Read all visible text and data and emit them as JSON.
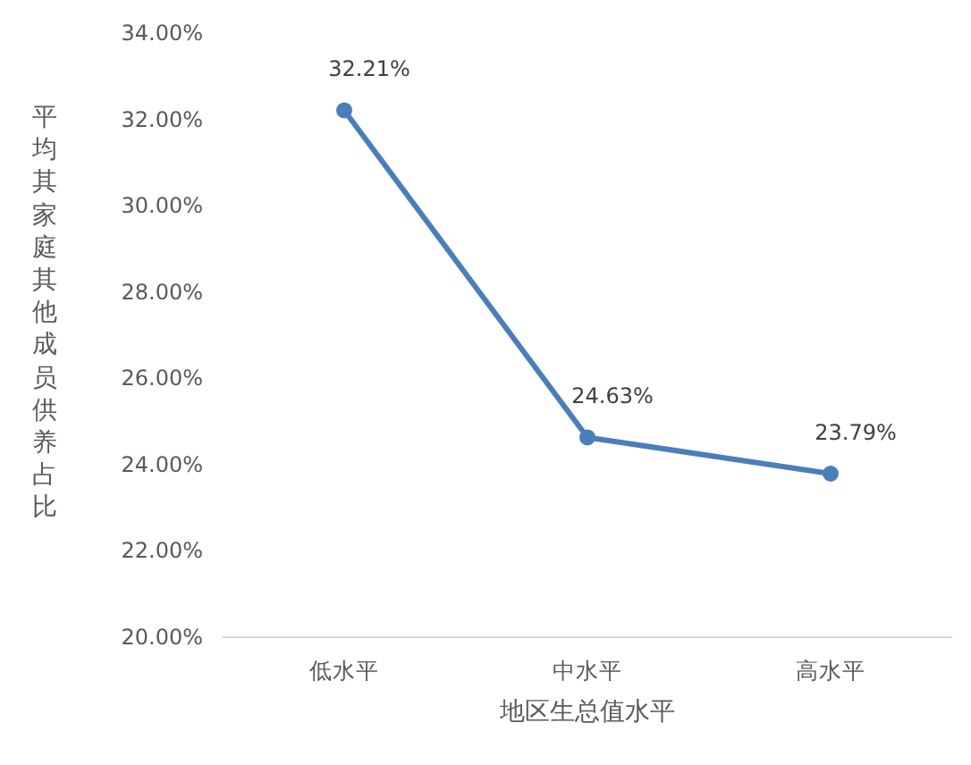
{
  "chart_data": {
    "type": "line",
    "xlabel": "地区生总值水平",
    "ylabel": "平均其家庭其他成员供养占比",
    "categories": [
      "低水平",
      "中水平",
      "高水平"
    ],
    "series": [
      {
        "color": "#4a7ebb",
        "values": [
          32.21,
          24.63,
          23.79
        ],
        "value_labels": [
          "32.21%",
          "24.63%",
          "23.79%"
        ]
      }
    ],
    "ylim": [
      20,
      34
    ],
    "yticks": [
      {
        "value": 20,
        "label": "20.00%"
      },
      {
        "value": 22,
        "label": "22.00%"
      },
      {
        "value": 24,
        "label": "24.00%"
      },
      {
        "value": 26,
        "label": "26.00%"
      },
      {
        "value": 28,
        "label": "28.00%"
      },
      {
        "value": 30,
        "label": "30.00%"
      },
      {
        "value": 32,
        "label": "32.00%"
      },
      {
        "value": 34,
        "label": "34.00%"
      }
    ],
    "grid": false,
    "marker": "circle",
    "line_style": "solid"
  }
}
